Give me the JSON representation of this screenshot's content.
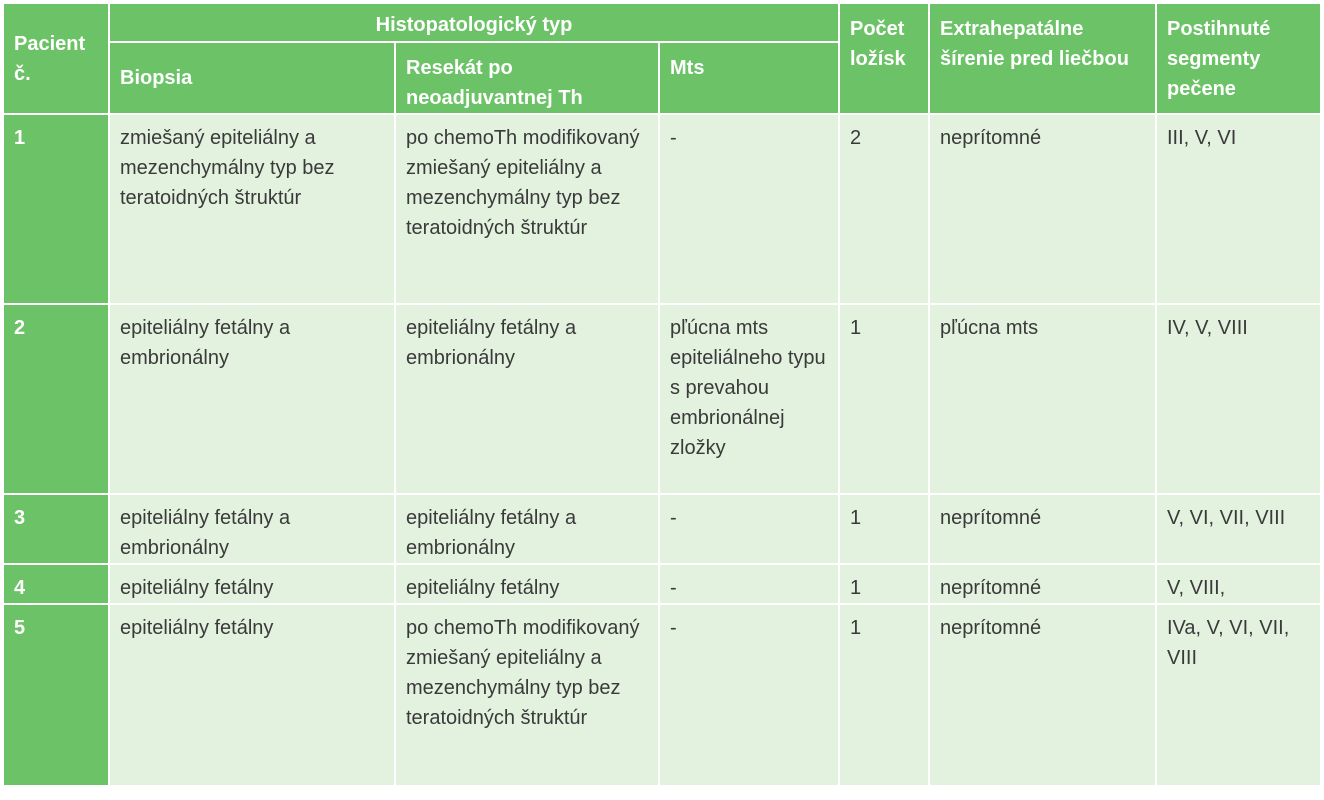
{
  "header": {
    "pacient": "Pacient č.",
    "histo_group": "Histopatologický typ",
    "biopsia": "Biopsia",
    "resekat": "Resekát po neoadjuvantnej Th",
    "mts": "Mts",
    "pocet": "Počet ložísk",
    "extra": "Extrahepatálne šírenie pred liečbou",
    "segmenty": "Postihnuté segmenty pečene"
  },
  "rows": [
    {
      "num": "1",
      "biopsia": "zmiešaný epiteliálny a mezenchymálny typ bez teratoidných štruktúr",
      "resekat": "po chemoTh modifikovaný zmiešaný epiteliálny a mezenchymálny typ bez teratoidných štruktúr",
      "mts": "-",
      "pocet": "2",
      "extra": "neprítomné",
      "segmenty": "III, V, VI"
    },
    {
      "num": "2",
      "biopsia": "epiteliálny fetálny a embrionálny",
      "resekat": "epiteliálny fetálny a embrionálny",
      "mts": "pľúcna mts epiteliálneho typu s prevahou embrionálnej zložky",
      "pocet": "1",
      "extra": "pľúcna mts",
      "segmenty": "IV, V, VIII"
    },
    {
      "num": "3",
      "biopsia": "epiteliálny fetálny a embrionálny",
      "resekat": "epiteliálny fetálny a embrionálny",
      "mts": "-",
      "pocet": "1",
      "extra": "neprítomné",
      "segmenty": "V, VI, VII, VIII"
    },
    {
      "num": "4",
      "biopsia": "epiteliálny fetálny",
      "resekat": "epiteliálny fetálny",
      "mts": "-",
      "pocet": "1",
      "extra": "neprítomné",
      "segmenty": "V, VIII,"
    },
    {
      "num": "5",
      "biopsia": "epiteliálny fetálny",
      "resekat": "po chemoTh modifikovaný zmiešaný epiteliálny a mezenchymálny typ bez teratoidných štruktúr",
      "mts": "-",
      "pocet": "1",
      "extra": "neprítomné",
      "segmenty": "IVa, V, VI, VII, VIII"
    }
  ],
  "colors": {
    "header_green": "#6cc266",
    "cell_green": "#e3f1df",
    "text": "#3a3a3a"
  }
}
